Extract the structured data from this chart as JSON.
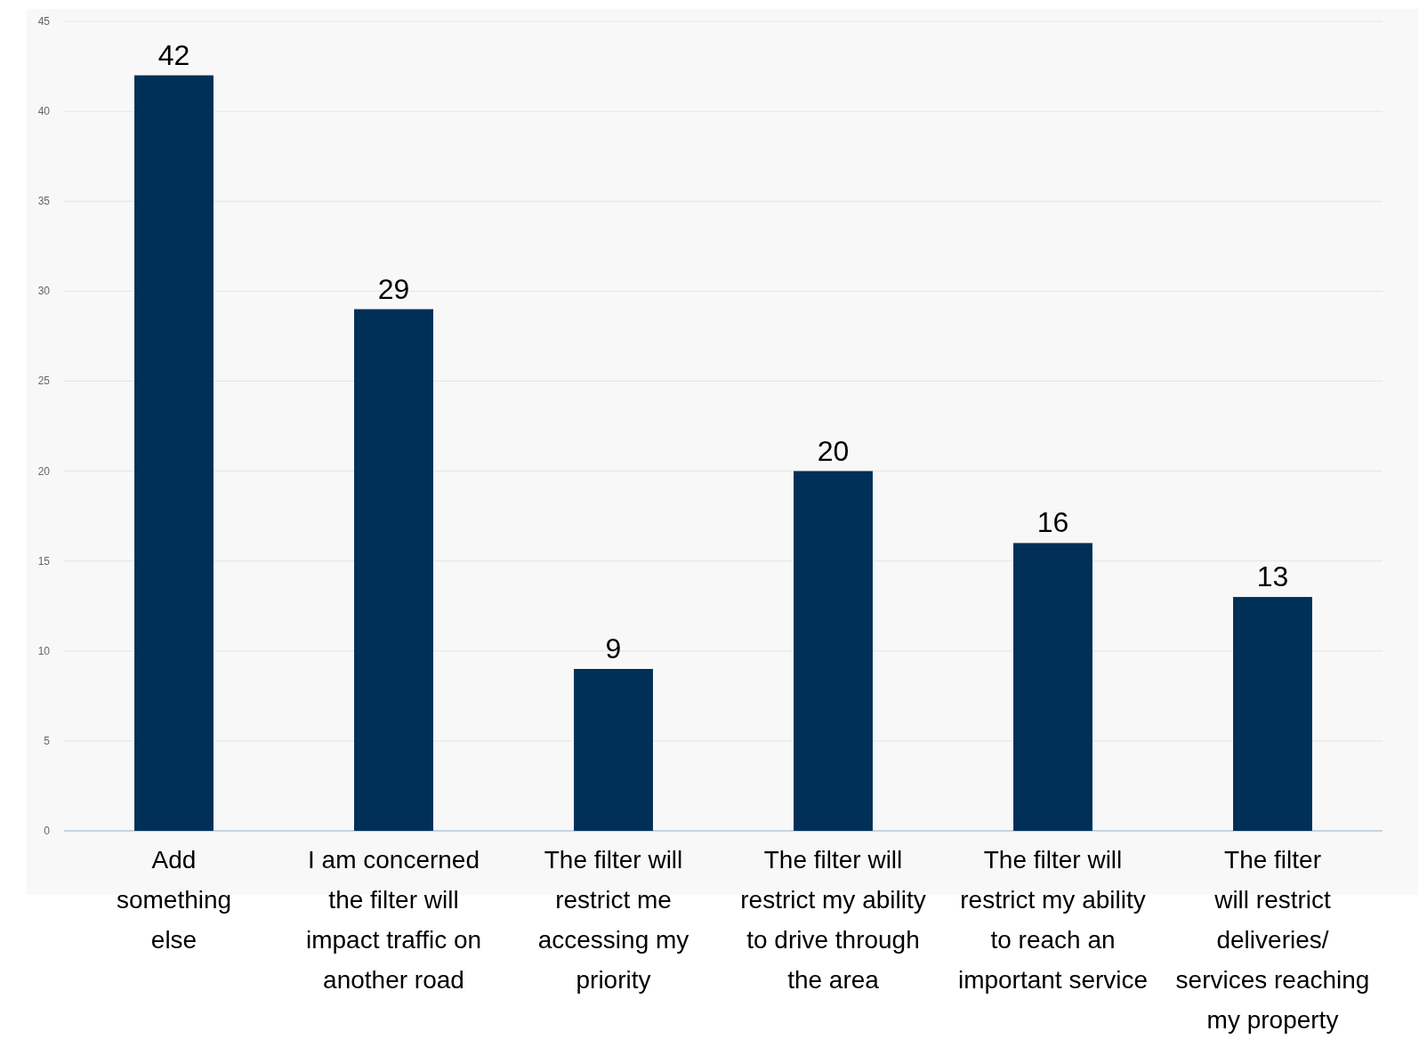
{
  "chart_data": {
    "type": "bar",
    "categories": [
      "Add\nsomething\nelse",
      "I am concerned\nthe filter will\nimpact traffic on\nanother road",
      "The filter will\nrestrict me\naccessing my\npriority",
      "The filter will\nrestrict my ability\nto drive through\nthe area",
      "The filter will\nrestrict my ability\nto reach an\nimportant service",
      "The filter\nwill restrict\ndeliveries/\nservices reaching\nmy property"
    ],
    "values": [
      42,
      29,
      9,
      20,
      16,
      13
    ],
    "color": "#003057",
    "ylim": [
      0,
      45
    ],
    "yticks": [
      0,
      5,
      10,
      15,
      20,
      25,
      30,
      35,
      40,
      45
    ],
    "grid": "y",
    "data_labels": true
  }
}
